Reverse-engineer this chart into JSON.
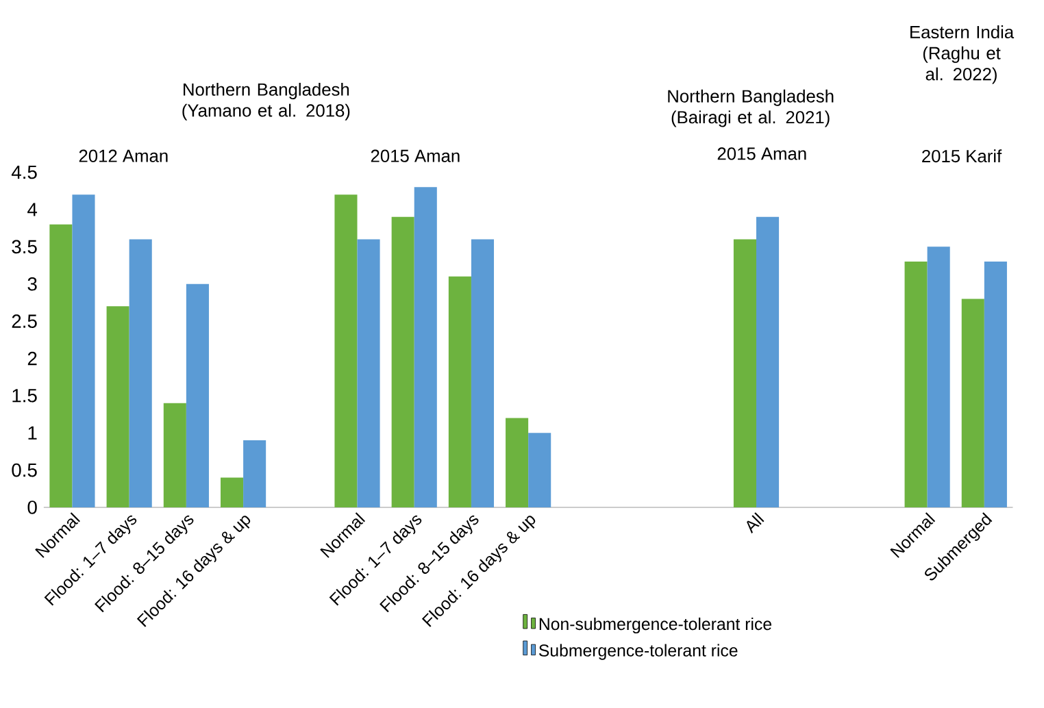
{
  "chart_data": {
    "type": "bar",
    "categories": [
      "Normal",
      "Flood: 1–7 days",
      "Flood: 8–15 days",
      "Flood: 16 days & up",
      null,
      "Normal",
      "Flood: 1–7 days",
      "Flood: 8–15 days",
      "Flood: 16 days & up",
      null,
      null,
      null,
      "All",
      null,
      null,
      "Normal",
      "Submerged"
    ],
    "series": [
      {
        "name": "Non-submergence-tolerant rice",
        "color": "#6db33f",
        "values": [
          3.8,
          2.7,
          1.4,
          0.4,
          null,
          4.2,
          3.9,
          3.1,
          1.2,
          null,
          null,
          null,
          3.6,
          null,
          null,
          3.3,
          2.8
        ]
      },
      {
        "name": "Submergence-tolerant rice",
        "color": "#5b9bd5",
        "values": [
          4.2,
          3.6,
          3.0,
          0.9,
          null,
          3.6,
          4.3,
          3.6,
          1.0,
          null,
          null,
          null,
          3.9,
          null,
          null,
          3.5,
          3.3
        ]
      }
    ],
    "ylim": [
      0,
      4.5
    ],
    "yticks": [
      0,
      0.5,
      1,
      1.5,
      2,
      2.5,
      3,
      3.5,
      4,
      4.5
    ],
    "legend": "bottom",
    "grid": false,
    "annotations": [
      "Northern Bangladesh (Yamano et al. 2018)",
      "2012 Aman",
      "2015 Aman",
      "Northern Bangladesh (Bairagi et al. 2021)",
      "2015 Aman",
      "Eastern India (Raghu et al. 2022)",
      "2015 Karif"
    ]
  }
}
